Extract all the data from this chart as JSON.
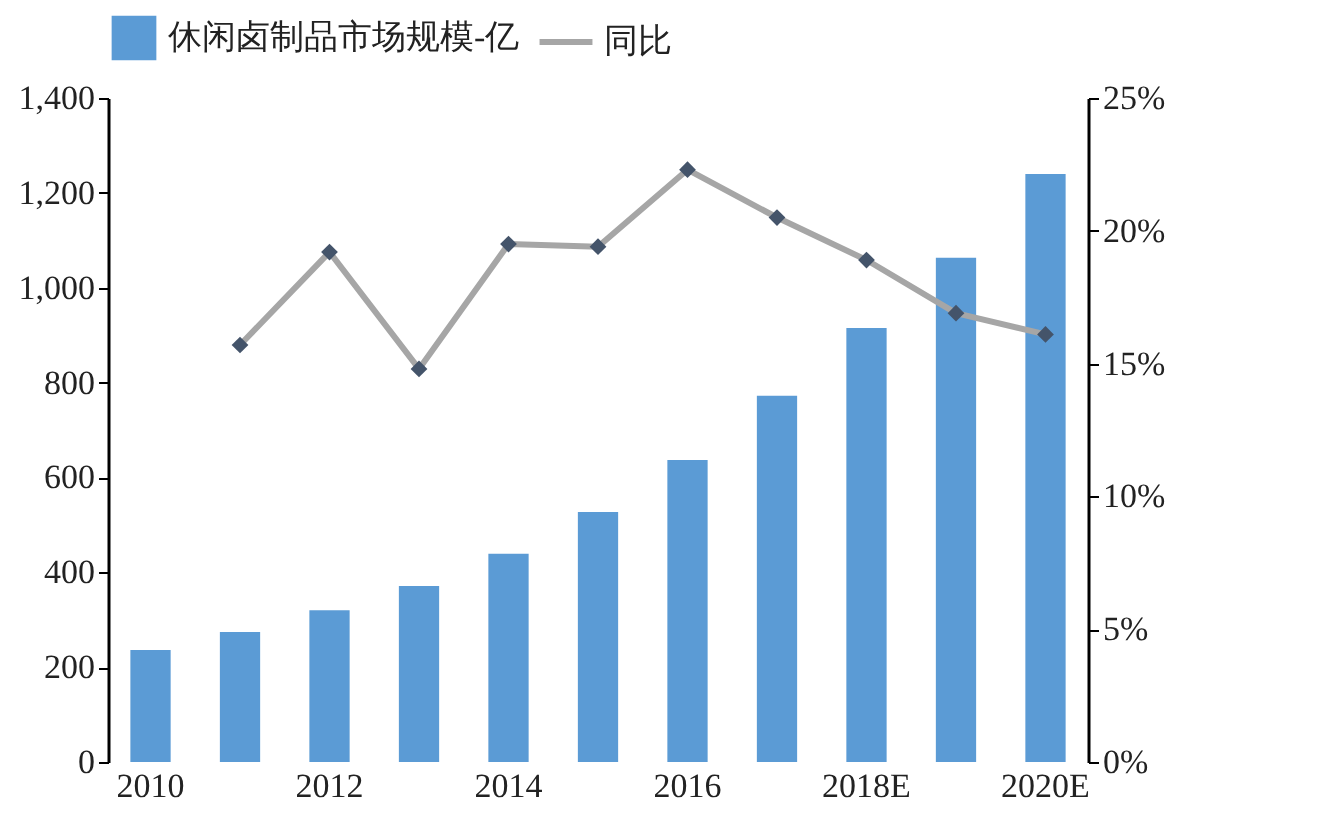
{
  "chart_data": {
    "type": "bar",
    "categories": [
      "2010",
      null,
      "2012",
      null,
      "2014",
      null,
      "2016",
      null,
      "2018E",
      null,
      "2020E"
    ],
    "series": [
      {
        "name": "休闲卤制品市场规模-亿",
        "color": "#5b9bd5",
        "values": [
          236,
          274,
          320,
          371,
          439,
          527,
          637,
          772,
          915,
          1063,
          1240
        ]
      },
      {
        "name": "同比",
        "type": "line",
        "axis": "y2",
        "color": "#a6a6a6",
        "marker": "diamond",
        "values": [
          null,
          15.7,
          19.2,
          14.8,
          19.5,
          19.4,
          22.3,
          20.5,
          18.9,
          16.9,
          16.1
        ]
      }
    ],
    "ylim": [
      0,
      1400
    ],
    "yticks": [
      {
        "value": 0,
        "label": "0"
      },
      {
        "value": 200,
        "label": "200"
      },
      {
        "value": 400,
        "label": "400"
      },
      {
        "value": 600,
        "label": "600"
      },
      {
        "value": 800,
        "label": "800"
      },
      {
        "value": 1000,
        "label": "1,000"
      },
      {
        "value": 1200,
        "label": "1,200"
      },
      {
        "value": 1400,
        "label": "1,400"
      }
    ],
    "y2lim": [
      0,
      25
    ],
    "y2ticks": [
      {
        "value": 0,
        "label": "0%"
      },
      {
        "value": 5,
        "label": "5%"
      },
      {
        "value": 10,
        "label": "10%"
      },
      {
        "value": 15,
        "label": "15%"
      },
      {
        "value": 20,
        "label": "20%"
      },
      {
        "value": 25,
        "label": "25%"
      }
    ],
    "grid": false,
    "legend": "top"
  }
}
